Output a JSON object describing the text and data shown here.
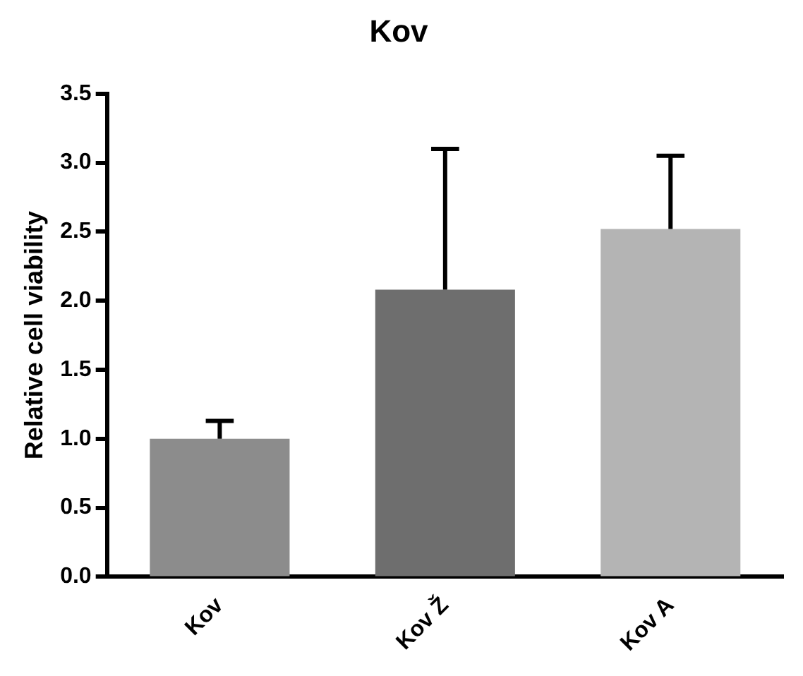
{
  "chart_data": {
    "type": "bar",
    "title": "Kov",
    "ylabel": "Relative cell viability",
    "categories": [
      "Kov",
      "Kov Ž",
      "Kov A"
    ],
    "values": [
      1.0,
      2.08,
      2.52
    ],
    "colors": [
      "#8c8c8c",
      "#6e6e6e",
      "#b4b4b4"
    ],
    "errors": [
      [
        1.0,
        1.13
      ],
      [
        2.08,
        3.1
      ],
      [
        2.52,
        3.05
      ]
    ],
    "ylim": [
      0,
      3.5
    ],
    "yticks": [
      {
        "value": 0,
        "label": "0.0"
      },
      {
        "value": 0.5,
        "label": "0.5"
      },
      {
        "value": 1,
        "label": "1.0"
      },
      {
        "value": 1.5,
        "label": "1.5"
      },
      {
        "value": 2,
        "label": "2.0"
      },
      {
        "value": 2.5,
        "label": "2.5"
      },
      {
        "value": 3,
        "label": "3.0"
      },
      {
        "value": 3.5,
        "label": "3.5"
      }
    ],
    "grid": false,
    "legend": false
  }
}
